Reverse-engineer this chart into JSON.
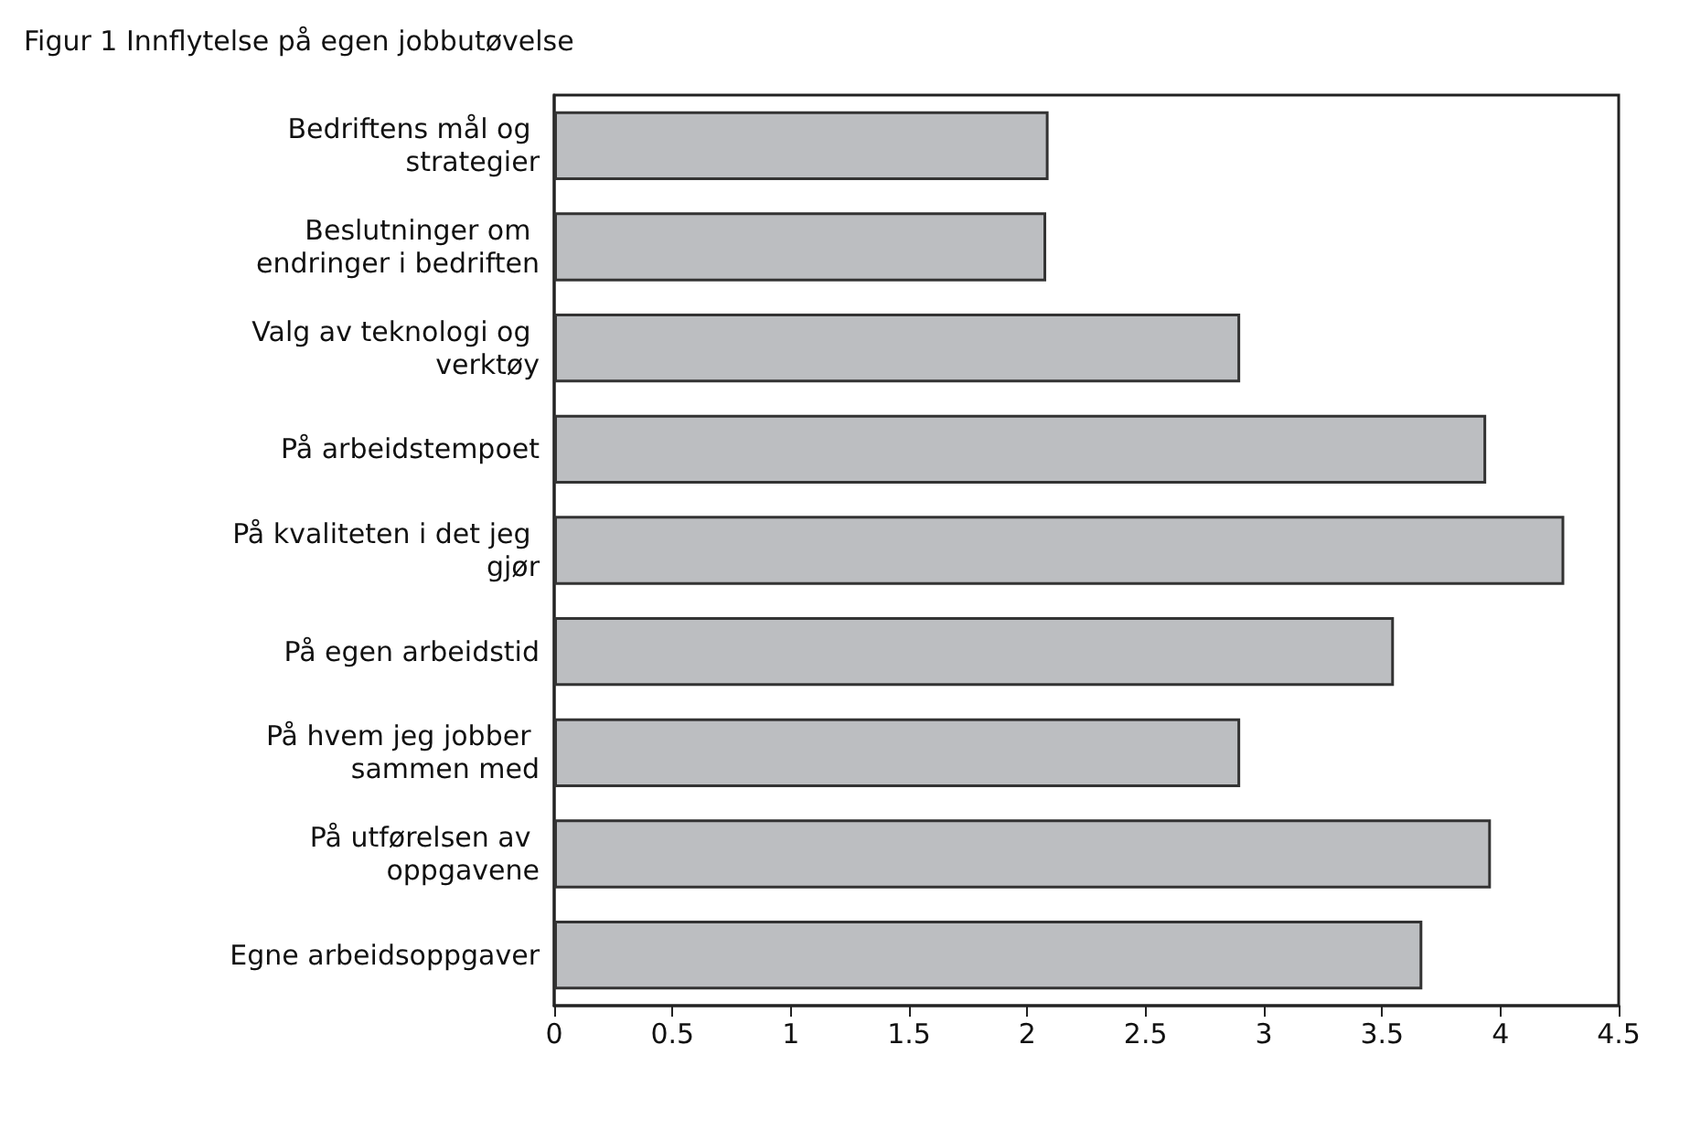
{
  "chart_data": {
    "type": "bar",
    "orientation": "horizontal",
    "title": "Figur 1 Innflytelse på egen jobbutøvelse",
    "categories": [
      "Bedriftens mål og strategier",
      "Beslutninger om endringer i bedriften",
      "Valg av teknologi og verktøy",
      "På arbeidstempoet",
      "På kvaliteten i det jeg gjør",
      "På egen arbeidstid",
      "På hvem jeg jobber sammen med",
      "På utførelsen av oppgavene",
      "Egne arbeidsoppgaver"
    ],
    "values": [
      2.09,
      2.08,
      2.9,
      3.94,
      4.27,
      3.55,
      2.9,
      3.96,
      3.67
    ],
    "color": "#bcbec1",
    "xlim": [
      0,
      4.5
    ],
    "xticks": [
      0,
      0.5,
      1,
      1.5,
      2,
      2.5,
      3,
      3.5,
      4,
      4.5
    ],
    "grid": false
  }
}
